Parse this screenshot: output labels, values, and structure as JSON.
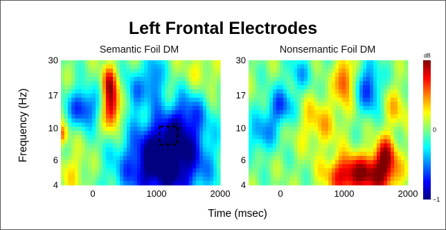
{
  "chart_data": {
    "type": "heatmap",
    "title": "Left Frontal Electrodes",
    "xlabel": "Time (msec)",
    "ylabel": "Frequency (Hz)",
    "xlim": [
      -500,
      2000
    ],
    "ylim": [
      4,
      30
    ],
    "y_scale": "log",
    "x_ticks": [
      "0",
      "1000",
      "2000"
    ],
    "y_ticks": [
      "30",
      "17",
      "10",
      "6",
      "4"
    ],
    "colorbar": {
      "unit": "dB",
      "ticks": [
        "0",
        "-1"
      ],
      "range": [
        -1,
        1
      ],
      "colors": [
        "#000080",
        "#0000ff",
        "#0080ff",
        "#00ffff",
        "#80ff80",
        "#ffff00",
        "#ff8000",
        "#ff0000",
        "#800000"
      ]
    },
    "panels": [
      {
        "title": "Semantic Foil DM",
        "blobs": [
          {
            "t": 1100,
            "f": 5.0,
            "st": 480,
            "sf": 0.35,
            "a": -1.0
          },
          {
            "t": 1200,
            "f": 8.5,
            "st": 380,
            "sf": 0.32,
            "a": -0.75
          },
          {
            "t": 1500,
            "f": 13,
            "st": 220,
            "sf": 0.28,
            "a": -0.45
          },
          {
            "t": -150,
            "f": 14,
            "st": 170,
            "sf": 0.22,
            "a": -0.7
          },
          {
            "t": 300,
            "f": 14,
            "st": 90,
            "sf": 0.25,
            "a": 0.9
          },
          {
            "t": 250,
            "f": 21,
            "st": 80,
            "sf": 0.2,
            "a": 0.6
          },
          {
            "t": 650,
            "f": 18,
            "st": 100,
            "sf": 0.25,
            "a": -0.45
          },
          {
            "t": 950,
            "f": 22,
            "st": 110,
            "sf": 0.3,
            "a": -0.6
          },
          {
            "t": -300,
            "f": 5,
            "st": 200,
            "sf": 0.25,
            "a": 0.25
          },
          {
            "t": -480,
            "f": 9,
            "st": 60,
            "sf": 0.12,
            "a": 0.5
          },
          {
            "t": 1700,
            "f": 25,
            "st": 200,
            "sf": 0.25,
            "a": 0.2
          }
        ],
        "roi": {
          "t0": 1050,
          "t1": 1330,
          "f0": 7.7,
          "f1": 10.3
        }
      },
      {
        "title": "Nonsemantic Foil DM",
        "blobs": [
          {
            "t": 1100,
            "f": 4.7,
            "st": 260,
            "sf": 0.22,
            "a": 0.95
          },
          {
            "t": 1600,
            "f": 4.9,
            "st": 190,
            "sf": 0.24,
            "a": 0.8
          },
          {
            "t": 1650,
            "f": 6.8,
            "st": 110,
            "sf": 0.2,
            "a": 0.55
          },
          {
            "t": 1400,
            "f": 19,
            "st": 130,
            "sf": 0.3,
            "a": -0.65
          },
          {
            "t": 1000,
            "f": 22,
            "st": 90,
            "sf": 0.25,
            "a": 0.7
          },
          {
            "t": 0,
            "f": 14,
            "st": 160,
            "sf": 0.22,
            "a": -0.6
          },
          {
            "t": -300,
            "f": 9,
            "st": 160,
            "sf": 0.22,
            "a": -0.45
          },
          {
            "t": 600,
            "f": 11,
            "st": 250,
            "sf": 0.3,
            "a": 0.35
          },
          {
            "t": 1800,
            "f": 14,
            "st": 160,
            "sf": 0.25,
            "a": 0.3
          },
          {
            "t": 300,
            "f": 24,
            "st": 140,
            "sf": 0.2,
            "a": -0.35
          }
        ]
      }
    ]
  }
}
